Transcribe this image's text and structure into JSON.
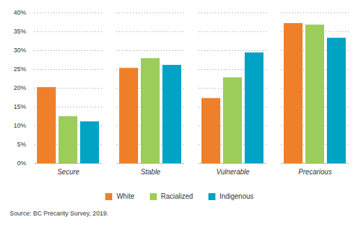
{
  "chart_data": {
    "type": "bar",
    "categories": [
      "Secure",
      "Stable",
      "Vulnerable",
      "Precarious"
    ],
    "series": [
      {
        "name": "White",
        "color": "#f07f2a",
        "values": [
          20.2,
          25.3,
          17.3,
          37.2
        ]
      },
      {
        "name": "Racialized",
        "color": "#9ccc5a",
        "values": [
          12.5,
          27.9,
          22.8,
          36.8
        ]
      },
      {
        "name": "Indigenous",
        "color": "#00a3c4",
        "values": [
          11.1,
          26.1,
          29.4,
          33.3
        ]
      }
    ],
    "ylim": [
      0,
      40
    ],
    "yticks": [
      {
        "value": 0,
        "label": "0%"
      },
      {
        "value": 5,
        "label": "5%"
      },
      {
        "value": 10,
        "label": "10%"
      },
      {
        "value": 15,
        "label": "15%"
      },
      {
        "value": 20,
        "label": "20%"
      },
      {
        "value": 25,
        "label": "25%"
      },
      {
        "value": 30,
        "label": "30%"
      },
      {
        "value": 35,
        "label": "35%"
      },
      {
        "value": 40,
        "label": "40%"
      }
    ],
    "grid": true,
    "legend": "bottom",
    "caption": "Source: BC Precarity Survey, 2019."
  }
}
